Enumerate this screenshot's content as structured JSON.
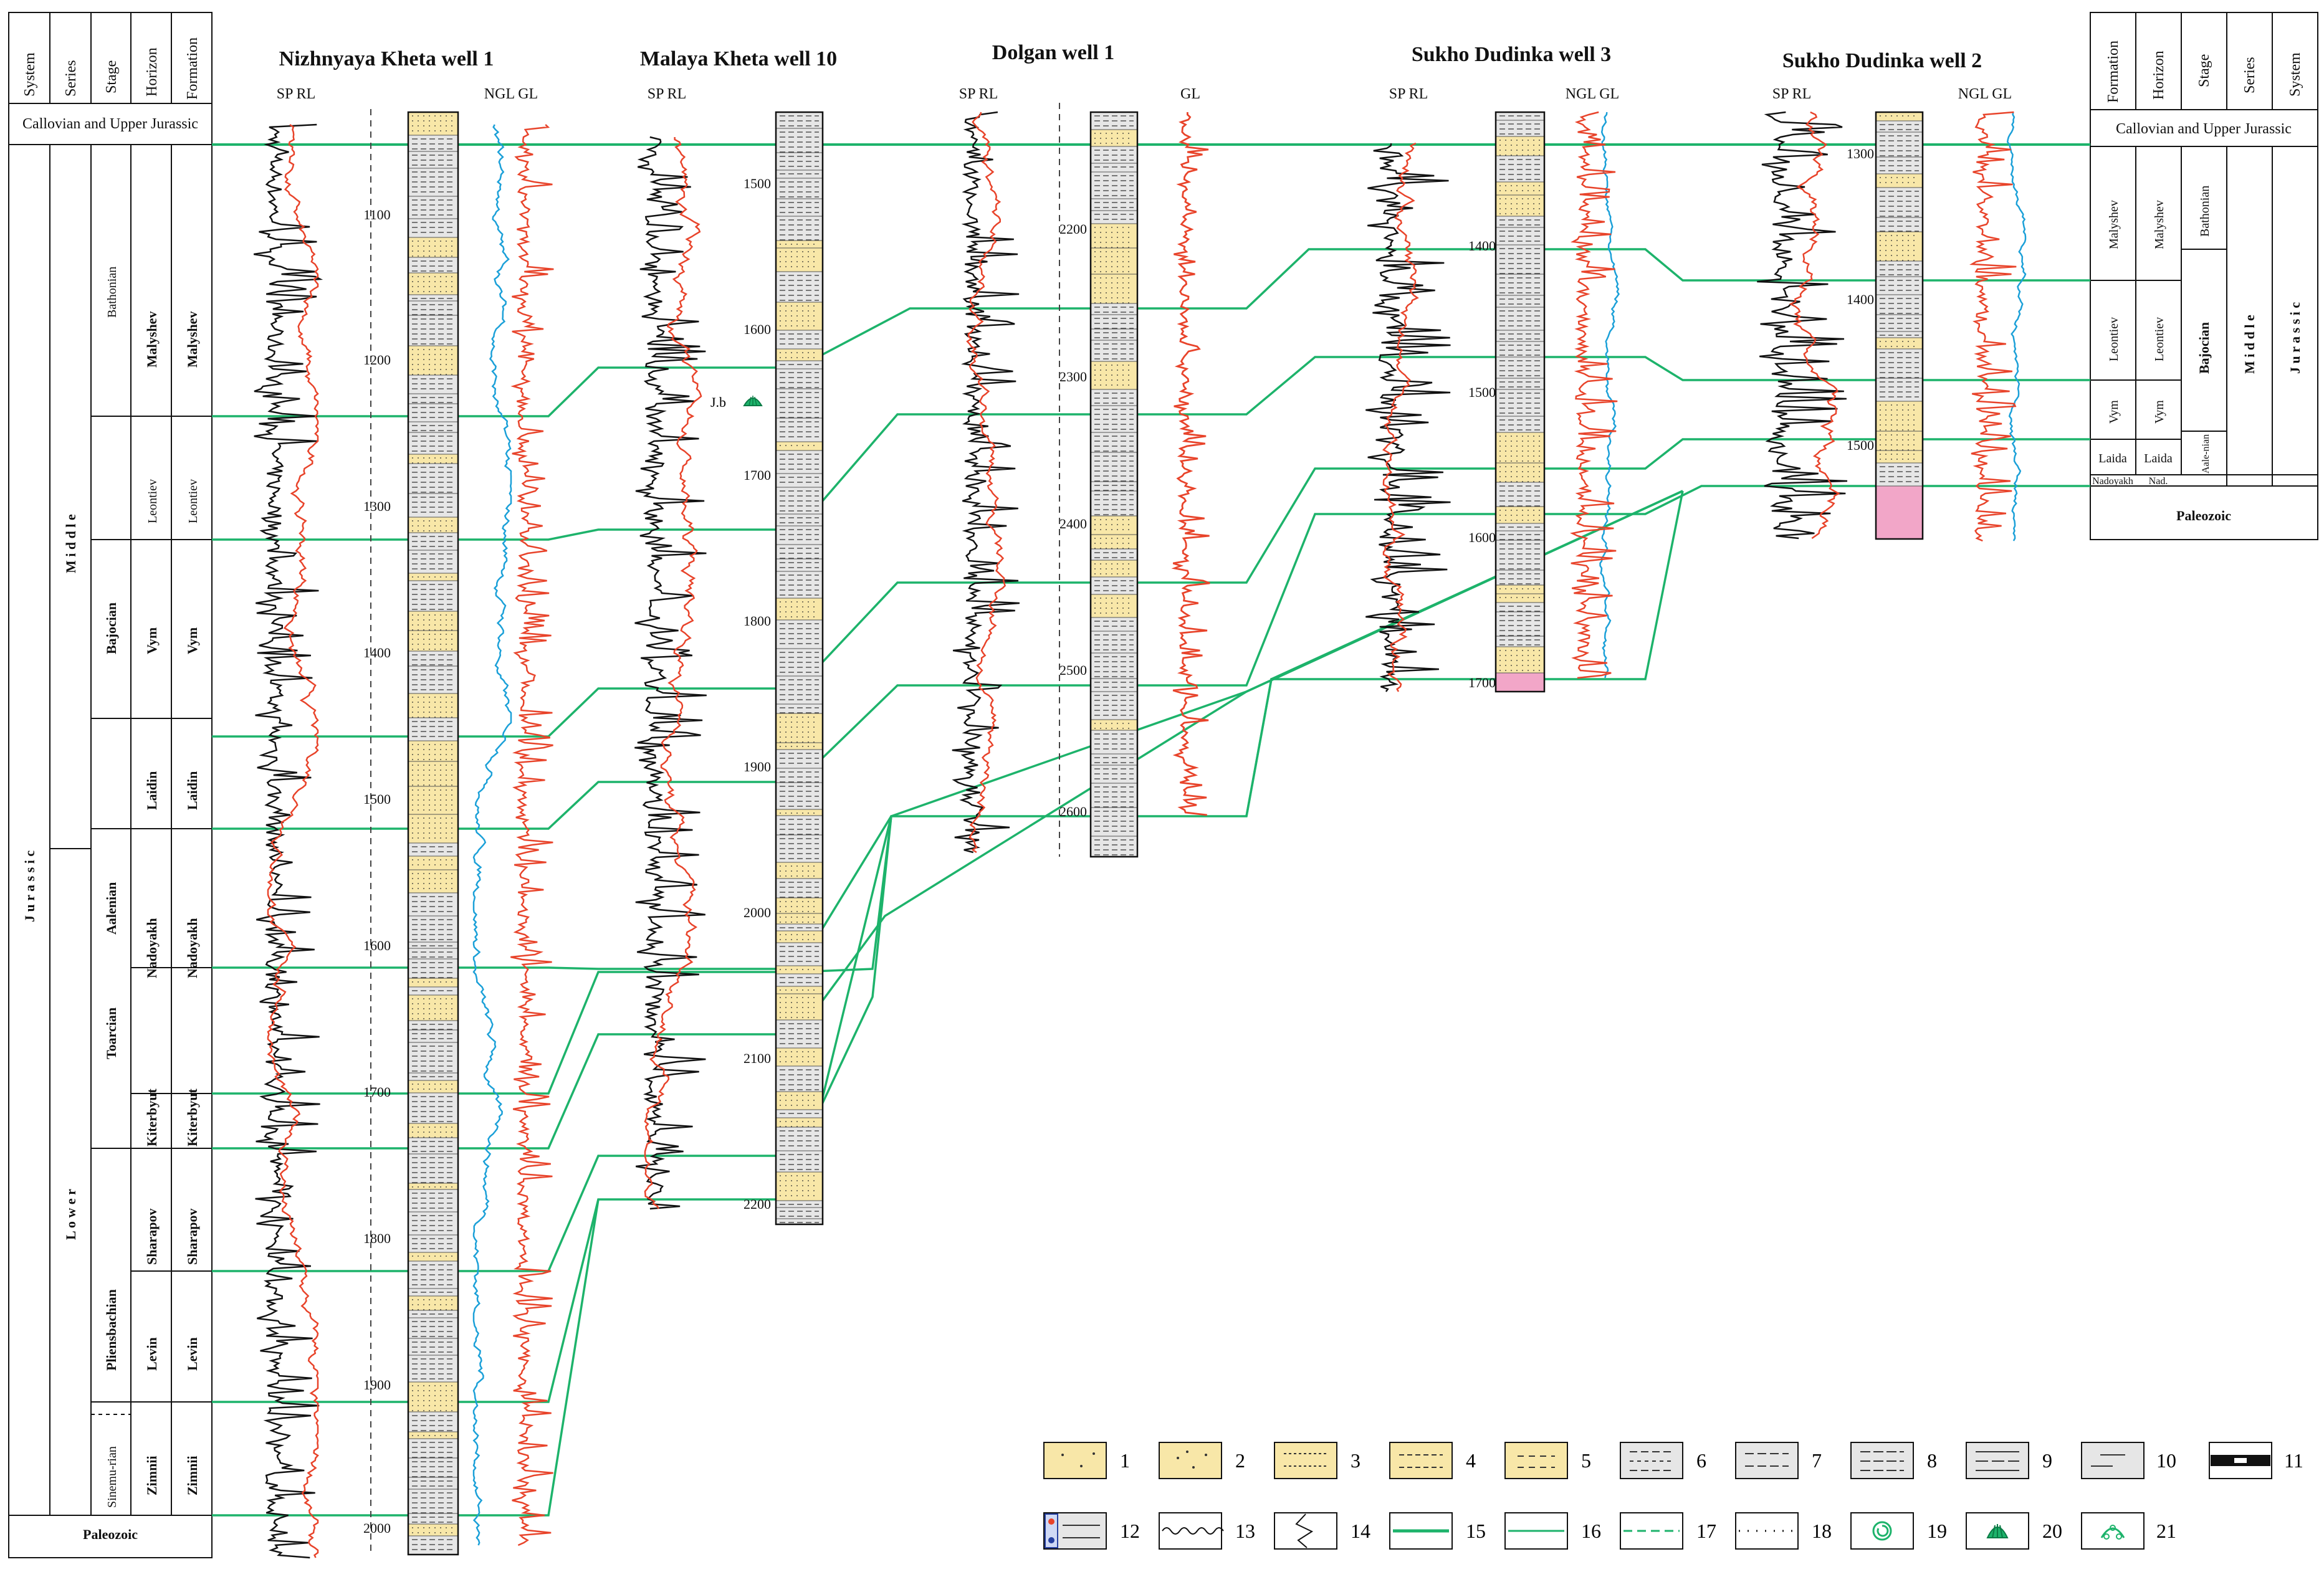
{
  "wells": [
    {
      "id": "w1",
      "title": "Nizhnyaya Kheta well 1",
      "left_curves": "SP RL",
      "right_curves": "NGL GL",
      "depths": [
        "1100",
        "1200",
        "1300",
        "1400",
        "1500",
        "1600",
        "1700",
        "1800",
        "1900",
        "2000"
      ]
    },
    {
      "id": "w2",
      "title": "Malaya Kheta well 10",
      "left_curves": "SP RL",
      "right_curves": "",
      "depths": [
        "1500",
        "1600",
        "1700",
        "1800",
        "1900",
        "2000",
        "2100",
        "2200"
      ],
      "fossil_label": "J.b"
    },
    {
      "id": "w3",
      "title": "Dolgan well 1",
      "left_curves": "SP RL",
      "right_curves": "GL",
      "depths": [
        "2200",
        "2300",
        "2400",
        "2500",
        "2600"
      ]
    },
    {
      "id": "w4",
      "title": "Sukho Dudinka well 3",
      "left_curves": "SP RL",
      "right_curves": "NGL GL",
      "depths": [
        "1400",
        "1500",
        "1600",
        "1700"
      ]
    },
    {
      "id": "w5",
      "title": "Sukho Dudinka well 2",
      "left_curves": "SP RL",
      "right_curves": "NGL GL",
      "depths": [
        "1300",
        "1400",
        "1500"
      ]
    }
  ],
  "left_column": {
    "headers": [
      "System",
      "Series",
      "Stage",
      "Horizon",
      "Formation"
    ],
    "top_unit": "Callovian and Upper Jurassic",
    "system": "J u r a s s i c",
    "series": [
      {
        "label": "M i d d l e"
      },
      {
        "label": "L o w e r"
      }
    ],
    "stages": [
      "Bathonian",
      "Bajocian",
      "Aalenian",
      "Toarcian",
      "Pliensbachian",
      "Sinemu-rian"
    ],
    "horizons": [
      "Malyshev",
      "Leontiev",
      "Vym",
      "Laidin",
      "Nadoyakh",
      "Kiterbyut",
      "Sharapov",
      "Levin",
      "Zimnii"
    ],
    "formations": [
      "Malyshev",
      "Leontiev",
      "Vym",
      "Laidin",
      "Nadoyakh",
      "Kiterbyut",
      "Sharapov",
      "Levin",
      "Zimnii"
    ],
    "bottom": "Paleozoic"
  },
  "right_column": {
    "headers": [
      "Formation",
      "Horizon",
      "Stage",
      "Series",
      "System"
    ],
    "top_unit": "Callovian and Upper Jurassic",
    "formations": [
      "Malyshev",
      "Leontiev",
      "Vym",
      "Laida",
      "Nadoyakh"
    ],
    "horizons": [
      "Malyshev",
      "Leontiev",
      "Vym",
      "Laida",
      "Nad."
    ],
    "stages": [
      "Bathonian",
      "Bajocian",
      "Aale-nian"
    ],
    "series": "M i d d l e",
    "system": "J u r a s s i c",
    "bottom": "Paleozoic"
  },
  "legend": [
    "1",
    "2",
    "3",
    "4",
    "5",
    "6",
    "7",
    "8",
    "9",
    "10",
    "11",
    "12",
    "13",
    "14",
    "15",
    "16",
    "17",
    "18",
    "19",
    "20",
    "21"
  ],
  "colors": {
    "sp": "#111111",
    "rl": "#e8432a",
    "ngl": "#1ba0d8",
    "gl": "#e8432a",
    "corr": "#1db36b",
    "sand": "#f8e7a8",
    "shale": "#e6e6e6",
    "basement": "#f2a6c8"
  }
}
